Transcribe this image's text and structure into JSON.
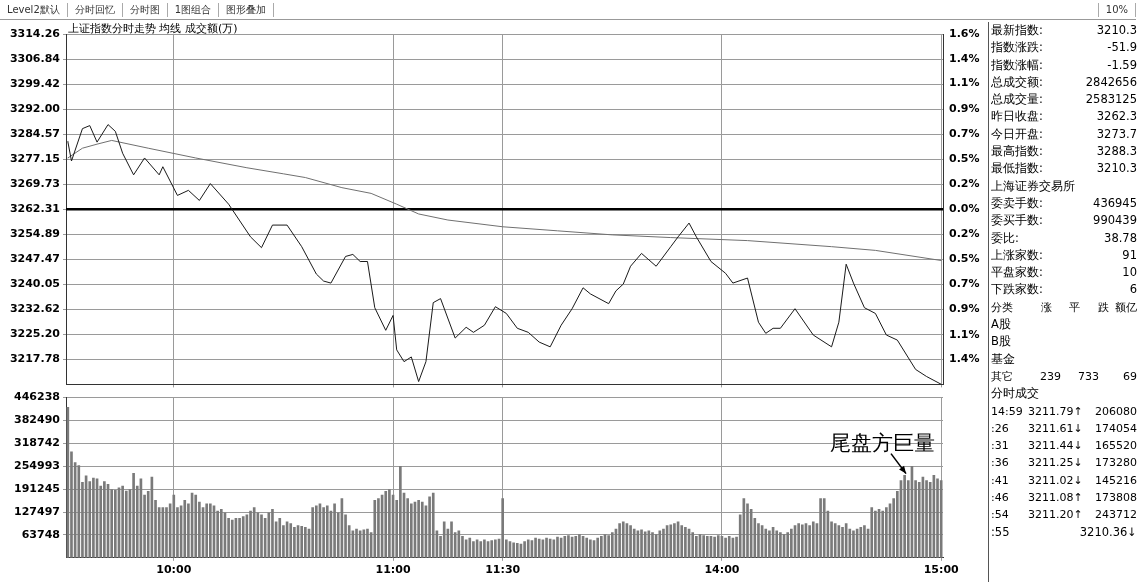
{
  "chart_data": [
    {
      "type": "other",
      "annotations": [
        "Level2默认",
        "分时回忆",
        "分时图",
        "1图组合",
        "图形叠加",
        "10%"
      ]
    },
    {
      "type": "line",
      "title": "上证指数分时走势 均线 成交额(万)",
      "grid": true,
      "tick_labels": "y",
      "categories": [
        null,
        null,
        null,
        null,
        null,
        null,
        null,
        null,
        null,
        null,
        null,
        null,
        null,
        null,
        null,
        null,
        null,
        null,
        null,
        null,
        null,
        null,
        null,
        null,
        null,
        null,
        null,
        null,
        null,
        null,
        null,
        null,
        null,
        null,
        null,
        null,
        null,
        null,
        null,
        null,
        null,
        null,
        null,
        null,
        null,
        null,
        null,
        null,
        null,
        null,
        null,
        null,
        null,
        null,
        null,
        null,
        null,
        null,
        null,
        null,
        null,
        null,
        null,
        null,
        null,
        null,
        null,
        null,
        null,
        null,
        null,
        null,
        null,
        null,
        null,
        null,
        null,
        null,
        null,
        null,
        null,
        null,
        null,
        null,
        null,
        null,
        null,
        null,
        null,
        null,
        null,
        null,
        null,
        null,
        null,
        null,
        null,
        null,
        null,
        null,
        null,
        null,
        null,
        null,
        null,
        null,
        null,
        null,
        null,
        null,
        null,
        null,
        null,
        null,
        null,
        null,
        null,
        null,
        null,
        null,
        null,
        null,
        null,
        null,
        null,
        null,
        null,
        null,
        null,
        null,
        null,
        null,
        null,
        null,
        null,
        null,
        null,
        null,
        null,
        null,
        null,
        null,
        null,
        null,
        null,
        null,
        null,
        null,
        null,
        null,
        null,
        null,
        null,
        null,
        null,
        null,
        null,
        null,
        null,
        null,
        null,
        null,
        null,
        null,
        null,
        null,
        null,
        null,
        null,
        null,
        null,
        null,
        null,
        null,
        null,
        null,
        null,
        null,
        null,
        null,
        null,
        null,
        null,
        null,
        null,
        null,
        null,
        null,
        null,
        null,
        null,
        null,
        null,
        null,
        null,
        null,
        null,
        null,
        null,
        null,
        null,
        null,
        null,
        null,
        null,
        null,
        null,
        null,
        null,
        null,
        null,
        null,
        null,
        null,
        null,
        null,
        null,
        null,
        null,
        null,
        null,
        null,
        null,
        null,
        null,
        null,
        null,
        null,
        null,
        null,
        null,
        null,
        null,
        null,
        null,
        null,
        null,
        null,
        null,
        null
      ],
      "ylim": [
        3210.36,
        3314.26
      ],
      "yticks": [
        3314.26,
        3306.84,
        3299.42,
        {
          "value": 3292,
          "label": "3292.00"
        },
        3284.57,
        3277.15,
        3269.73,
        3262.31,
        3254.89,
        3247.47,
        3240.05,
        3232.62,
        {
          "value": 3225.2,
          "label": "3225.20"
        },
        3217.78
      ],
      "y2lim": [
        -1.59,
        1.59
      ],
      "y2ticks": [
        {
          "value": 1.59,
          "label": "1.6%"
        },
        {
          "value": 1.36,
          "label": "1.4%"
        },
        {
          "value": 1.14,
          "label": "1.1%"
        },
        {
          "value": 0.91,
          "label": "0.9%"
        },
        {
          "value": 0.68,
          "label": "0.7%"
        },
        {
          "value": 0.45,
          "label": "0.5%"
        },
        {
          "value": 0.23,
          "label": "0.2%"
        },
        {
          "value": 0,
          "label": "0.0%"
        },
        {
          "value": -0.23,
          "label": "0.2%"
        },
        {
          "value": -0.45,
          "label": "0.5%"
        },
        {
          "value": -0.68,
          "label": "0.7%"
        },
        {
          "value": -0.91,
          "label": "0.9%"
        },
        {
          "value": -1.14,
          "label": "1.1%"
        },
        {
          "value": -1.36,
          "label": "1.4%"
        }
      ],
      "ref_lines": [
        {
          "axis": "y",
          "value": 3262.31,
          "color": "#000000"
        }
      ],
      "series": [
        {
          "color": "#1a1a1a",
          "values": [
            3282.4,
            3276.6,
            null,
            null,
            3286.2,
            null,
            3287.1,
            null,
            3282.2,
            null,
            null,
            3287.4,
            null,
            3285.4,
            null,
            3278.9,
            null,
            null,
            3272.5,
            null,
            null,
            3277.5,
            null,
            null,
            null,
            3272.5,
            3274.9,
            null,
            null,
            null,
            3266.4,
            null,
            null,
            3267.9,
            null,
            null,
            3264.9,
            null,
            null,
            3269.9,
            null,
            null,
            null,
            null,
            3263.8,
            null,
            null,
            null,
            null,
            null,
            3254.1,
            null,
            null,
            3250.9,
            null,
            null,
            3257.6,
            null,
            null,
            null,
            3257.6,
            null,
            null,
            null,
            3251.2,
            null,
            null,
            null,
            3243.1,
            null,
            3241.0,
            null,
            3240.4,
            null,
            null,
            null,
            3248.3,
            null,
            3248.9,
            null,
            3246.8,
            null,
            3246.8,
            null,
            3233.1,
            null,
            null,
            3226.4,
            null,
            3230.8,
            3220.6,
            null,
            3217.1,
            null,
            3218.5,
            null,
            3211.2,
            null,
            3217.1,
            null,
            3234.6,
            null,
            3235.8,
            null,
            null,
            null,
            3224.1,
            null,
            null,
            3227.3,
            null,
            3225.8,
            null,
            null,
            3227.9,
            null,
            null,
            3233.4,
            null,
            null,
            3231.4,
            null,
            null,
            3227.0,
            null,
            null,
            3225.8,
            null,
            null,
            3222.9,
            null,
            null,
            3221.5,
            null,
            null,
            3227.9,
            null,
            null,
            3232.8,
            null,
            null,
            3239.0,
            null,
            3237.2,
            null,
            null,
            null,
            null,
            3234.3,
            null,
            3238.1,
            null,
            3240.1,
            null,
            3245.4,
            null,
            null,
            3249.2,
            null,
            null,
            null,
            3245.4,
            null,
            null,
            null,
            3251.2,
            null,
            3254.1,
            null,
            null,
            3258.2,
            null,
            3254.1,
            null,
            null,
            null,
            3246.8,
            null,
            null,
            null,
            3243.3,
            null,
            3240.4,
            null,
            null,
            null,
            3241.9,
            null,
            null,
            3228.8,
            null,
            3225.5,
            null,
            3227.0,
            null,
            3227.0,
            null,
            null,
            null,
            3232.8,
            null,
            null,
            null,
            null,
            3225.0,
            null,
            null,
            null,
            null,
            3221.5,
            null,
            3228.8,
            null,
            3246.0,
            null,
            3240.4,
            null,
            null,
            3233.1,
            null,
            null,
            3231.4,
            null,
            null,
            3225.0,
            null,
            null,
            3223.5,
            null,
            null,
            null,
            null,
            3214.8,
            null,
            null,
            3212.7,
            null,
            null,
            null,
            3210.4
          ]
        },
        {
          "color": "#707070",
          "values": [
            3277.5,
            null,
            null,
            null,
            3280.4,
            null,
            null,
            null,
            3281.6,
            null,
            null,
            null,
            3282.7,
            null,
            null,
            null,
            null,
            null,
            null,
            null,
            null,
            null,
            3280.4,
            null,
            null,
            null,
            null,
            null,
            null,
            null,
            null,
            null,
            null,
            null,
            null,
            3277.5,
            null,
            null,
            null,
            null,
            null,
            null,
            null,
            null,
            null,
            null,
            null,
            null,
            null,
            3274.6,
            null,
            null,
            null,
            null,
            null,
            null,
            null,
            null,
            null,
            3272.8,
            null,
            null,
            null,
            null,
            null,
            3271.7,
            null,
            null,
            null,
            null,
            null,
            null,
            null,
            null,
            null,
            3268.7,
            null,
            null,
            null,
            null,
            null,
            null,
            null,
            3267.0,
            null,
            null,
            null,
            null,
            null,
            null,
            3263.8,
            null,
            null,
            null,
            null,
            null,
            3260.9,
            null,
            null,
            null,
            null,
            null,
            null,
            null,
            3259.1,
            null,
            null,
            null,
            null,
            null,
            null,
            null,
            null,
            null,
            null,
            null,
            null,
            null,
            null,
            3257.1,
            null,
            null,
            null,
            null,
            null,
            null,
            null,
            null,
            null,
            null,
            null,
            null,
            null,
            null,
            3255.9,
            null,
            null,
            null,
            null,
            null,
            null,
            null,
            null,
            null,
            null,
            null,
            null,
            null,
            null,
            3254.7,
            null,
            null,
            null,
            null,
            null,
            null,
            null,
            null,
            null,
            null,
            null,
            null,
            null,
            null,
            null,
            3253.9,
            null,
            null,
            null,
            null,
            null,
            null,
            null,
            null,
            null,
            null,
            null,
            null,
            null,
            null,
            null,
            null,
            null,
            null,
            null,
            null,
            3253.0,
            null,
            null,
            null,
            null,
            null,
            null,
            null,
            null,
            null,
            null,
            null,
            null,
            null,
            null,
            null,
            null,
            null,
            null,
            null,
            null,
            null,
            null,
            3251.2,
            null,
            null,
            null,
            null,
            null,
            null,
            null,
            null,
            null,
            null,
            null,
            3250.1,
            null,
            null,
            null,
            null,
            null,
            null,
            null,
            null,
            null,
            null,
            null,
            null,
            null,
            null,
            null,
            null,
            null,
            3247.1
          ]
        }
      ]
    },
    {
      "type": "bar",
      "grid": true,
      "color": "#7a7a7a",
      "categories": [
        null,
        null,
        null,
        null,
        null,
        null,
        null,
        null,
        null,
        null,
        null,
        null,
        null,
        null,
        null,
        null,
        null,
        null,
        null,
        null,
        null,
        null,
        null,
        null,
        null,
        null,
        null,
        null,
        null,
        "10:00",
        null,
        null,
        null,
        null,
        null,
        null,
        null,
        null,
        null,
        null,
        null,
        null,
        null,
        null,
        null,
        null,
        null,
        null,
        null,
        null,
        null,
        null,
        null,
        null,
        null,
        null,
        null,
        null,
        null,
        null,
        null,
        null,
        null,
        null,
        null,
        null,
        null,
        null,
        null,
        null,
        null,
        null,
        null,
        null,
        null,
        null,
        null,
        null,
        null,
        null,
        null,
        null,
        null,
        null,
        null,
        null,
        null,
        null,
        null,
        "11:00",
        null,
        null,
        null,
        null,
        null,
        null,
        null,
        null,
        null,
        null,
        null,
        null,
        null,
        null,
        null,
        null,
        null,
        null,
        null,
        null,
        null,
        null,
        null,
        null,
        null,
        null,
        null,
        null,
        null,
        "11:30",
        null,
        null,
        null,
        null,
        null,
        null,
        null,
        null,
        null,
        null,
        null,
        null,
        null,
        null,
        null,
        null,
        null,
        null,
        null,
        null,
        null,
        null,
        null,
        null,
        null,
        null,
        null,
        null,
        null,
        null,
        null,
        null,
        null,
        null,
        null,
        null,
        null,
        null,
        null,
        null,
        null,
        null,
        null,
        null,
        null,
        null,
        null,
        null,
        null,
        null,
        null,
        null,
        null,
        null,
        null,
        null,
        null,
        null,
        null,
        "14:00",
        null,
        null,
        null,
        null,
        null,
        null,
        null,
        null,
        null,
        null,
        null,
        null,
        null,
        null,
        null,
        null,
        null,
        null,
        null,
        null,
        null,
        null,
        null,
        null,
        null,
        null,
        null,
        null,
        null,
        null,
        null,
        null,
        null,
        null,
        null,
        null,
        null,
        null,
        null,
        null,
        null,
        null,
        null,
        null,
        null,
        null,
        null,
        null,
        null,
        null,
        null,
        null,
        null,
        null,
        null,
        null,
        null,
        null,
        null,
        "15:00"
      ],
      "ylim": [
        0,
        446238
      ],
      "yticks": [
        446238,
        382490,
        318742,
        254993,
        191245,
        127497,
        63748
      ],
      "annotations": [
        "尾盘方巨量"
      ],
      "values": [
        419000,
        295000,
        265000,
        257000,
        210000,
        228000,
        212000,
        222000,
        220000,
        200000,
        212000,
        205000,
        190000,
        188000,
        195000,
        200000,
        186000,
        190000,
        235000,
        200000,
        220000,
        175000,
        185000,
        225000,
        160000,
        140000,
        140000,
        140000,
        150000,
        175000,
        140000,
        145000,
        160000,
        150000,
        180000,
        175000,
        155000,
        140000,
        150000,
        150000,
        145000,
        130000,
        135000,
        125000,
        110000,
        105000,
        110000,
        110000,
        115000,
        120000,
        130000,
        140000,
        125000,
        120000,
        110000,
        125000,
        135000,
        100000,
        110000,
        90000,
        100000,
        95000,
        85000,
        90000,
        88000,
        85000,
        80000,
        140000,
        145000,
        150000,
        140000,
        145000,
        130000,
        150000,
        125000,
        165000,
        120000,
        90000,
        75000,
        80000,
        75000,
        78000,
        80000,
        70000,
        160000,
        165000,
        175000,
        185000,
        190000,
        175000,
        160000,
        255000,
        180000,
        165000,
        150000,
        155000,
        160000,
        155000,
        145000,
        170000,
        180000,
        75000,
        60000,
        100000,
        80000,
        100000,
        70000,
        75000,
        60000,
        50000,
        55000,
        45000,
        50000,
        45000,
        50000,
        45000,
        48000,
        50000,
        52000,
        165000,
        50000,
        45000,
        42000,
        40000,
        38000,
        45000,
        50000,
        48000,
        55000,
        52000,
        50000,
        55000,
        52000,
        50000,
        58000,
        55000,
        60000,
        62000,
        58000,
        60000,
        65000,
        60000,
        55000,
        50000,
        48000,
        55000,
        60000,
        65000,
        62000,
        70000,
        80000,
        95000,
        100000,
        95000,
        90000,
        80000,
        75000,
        78000,
        72000,
        75000,
        70000,
        65000,
        75000,
        80000,
        90000,
        92000,
        95000,
        100000,
        90000,
        85000,
        80000,
        70000,
        60000,
        65000,
        62000,
        60000,
        60000,
        58000,
        62000,
        60000,
        55000,
        60000,
        55000,
        58000,
        120000,
        165000,
        150000,
        135000,
        110000,
        95000,
        90000,
        80000,
        75000,
        85000,
        75000,
        70000,
        65000,
        70000,
        80000,
        90000,
        95000,
        92000,
        95000,
        90000,
        100000,
        95000,
        165000,
        165000,
        130000,
        100000,
        95000,
        90000,
        85000,
        95000,
        80000,
        75000,
        80000,
        85000,
        90000,
        80000,
        140000,
        130000,
        135000,
        130000,
        140000,
        150000,
        165000,
        185000,
        215000,
        230000,
        215000,
        255000,
        215000,
        210000,
        225000,
        215000,
        210000,
        230000,
        220000,
        215000
      ]
    },
    {
      "type": "other",
      "annotations": [
        "最新指数:\t3210.3",
        "指数涨跌:\t-51.9",
        "指数涨幅:\t-1.59",
        "总成交额:\t2842656",
        "总成交量:\t2583125",
        "昨日收盘:\t3262.3",
        "今日开盘:\t3273.7",
        "最高指数:\t3288.3",
        "最低指数:\t3210.3",
        "上海证券交易所",
        "委卖手数:\t436945",
        "委买手数:\t990439",
        "委比:\t38.78",
        "上涨家数:\t91",
        "平盘家数:\t10",
        "下跌家数:\t6",
        "分类\t涨\t平\t跌\t额亿",
        "A股",
        "B股",
        "基金",
        "其它\t239\t733\t69",
        "分时成交",
        "14:59\t3211.79↑\t206080",
        ":26\t3211.61↓\t174054",
        ":31\t3211.44↓\t165520",
        ":36\t3211.25↓\t173280",
        ":41\t3211.02↓\t145216",
        ":46\t3211.08↑\t173808",
        ":54\t3211.20↑\t243712",
        ":55\t3210.36↓"
      ]
    }
  ]
}
